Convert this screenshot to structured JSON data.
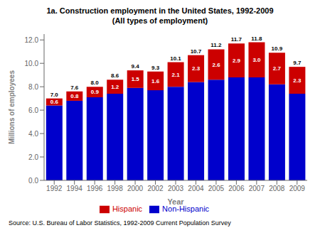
{
  "chart_data": {
    "type": "bar",
    "stacked": true,
    "title": "1a. Construction employment in the United States, 1992-2009",
    "subtitle": "(All types of employment)",
    "xlabel": "Year",
    "ylabel": "Millions of employees",
    "categories": [
      "1992",
      "1994",
      "1996",
      "1998",
      "2000",
      "2002",
      "2003",
      "2004",
      "2005",
      "2006",
      "2007",
      "2008",
      "2009"
    ],
    "series": [
      {
        "name": "Non-Hispanic",
        "color": "#0000CC",
        "values": [
          6.4,
          6.8,
          7.1,
          7.4,
          7.9,
          7.7,
          8.0,
          8.4,
          8.6,
          8.8,
          8.8,
          8.2,
          7.4
        ],
        "data_labels": false
      },
      {
        "name": "Hispanic",
        "color": "#CC0000",
        "values": [
          0.6,
          0.8,
          0.9,
          1.2,
          1.5,
          1.6,
          2.1,
          2.3,
          2.6,
          2.9,
          3.0,
          2.7,
          2.3
        ],
        "value_labels": [
          "0.6",
          "0.8",
          "0.9",
          "1.2",
          "1.5",
          "1.6",
          "2.1",
          "2.3",
          "2.6",
          "2.9",
          "3.0",
          "2.7",
          "2.3"
        ],
        "data_labels": true
      }
    ],
    "totals": {
      "values": [
        7.0,
        7.6,
        8.0,
        8.6,
        9.4,
        9.3,
        10.1,
        10.7,
        11.2,
        11.7,
        11.8,
        10.9,
        9.7
      ],
      "value_labels": [
        "7.0",
        "7.6",
        "8.0",
        "8.6",
        "9.4",
        "9.3",
        "10.1",
        "10.7",
        "11.2",
        "11.7",
        "11.8",
        "10.9",
        "9.7"
      ]
    },
    "ylim": [
      0,
      12.5
    ],
    "yticks": [
      {
        "value": 0,
        "label": "0.0"
      },
      {
        "value": 2,
        "label": "2.0"
      },
      {
        "value": 4,
        "label": "4.0"
      },
      {
        "value": 6,
        "label": "6.0"
      },
      {
        "value": 8,
        "label": "8.0"
      },
      {
        "value": 10,
        "label": "10.0"
      },
      {
        "value": 12,
        "label": "12.0"
      }
    ],
    "grid": false,
    "legend": "bottom",
    "source": "Source: U.S. Bureau of Labor Statistics, 1992-2009 Current Population Survey"
  }
}
